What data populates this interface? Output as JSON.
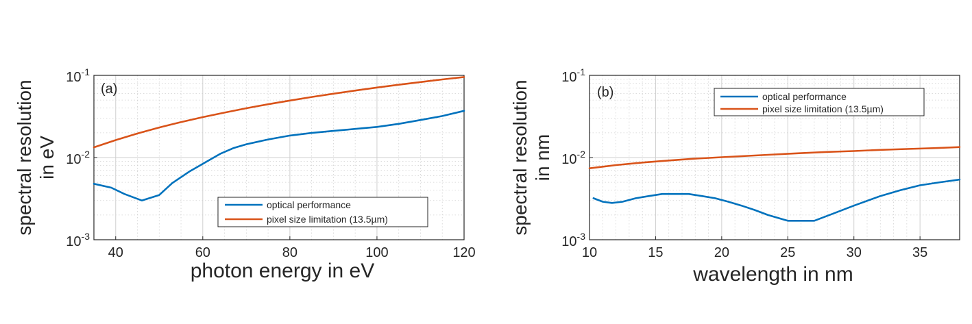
{
  "chart_data": [
    {
      "type": "line",
      "panel_label": "(a)",
      "xlabel": "photon energy in eV",
      "ylabel_lines": [
        "spectral resolution",
        "in eV"
      ],
      "xlim": [
        35,
        120
      ],
      "ylim": [
        0.001,
        0.1
      ],
      "yscale": "log",
      "grid": true,
      "xticks": [
        40,
        60,
        80,
        100,
        120
      ],
      "yticks": [
        {
          "value": 0.001,
          "base": "10",
          "exp": "-3"
        },
        {
          "value": 0.01,
          "base": "10",
          "exp": "-2"
        },
        {
          "value": 0.1,
          "base": "10",
          "exp": "-1"
        }
      ],
      "legend_position": "lower-right",
      "series": [
        {
          "name": "optical performance",
          "color": "#0072BD",
          "x": [
            35,
            39,
            42,
            46,
            50,
            53,
            57,
            61,
            64,
            67,
            70,
            75,
            80,
            85,
            90,
            95,
            100,
            105,
            110,
            115,
            120
          ],
          "y": [
            0.0048,
            0.0043,
            0.0036,
            0.003,
            0.0035,
            0.0049,
            0.0068,
            0.009,
            0.0111,
            0.013,
            0.0145,
            0.0166,
            0.0185,
            0.0199,
            0.0211,
            0.0223,
            0.0236,
            0.0257,
            0.0286,
            0.032,
            0.037
          ]
        },
        {
          "name": "pixel size limitation (13.5µm)",
          "color": "#D95319",
          "x": [
            35,
            40,
            45,
            50,
            55,
            60,
            65,
            70,
            75,
            80,
            85,
            90,
            95,
            100,
            105,
            110,
            115,
            120
          ],
          "y": [
            0.0133,
            0.0163,
            0.0196,
            0.0232,
            0.027,
            0.031,
            0.0352,
            0.0398,
            0.0445,
            0.0494,
            0.0545,
            0.0598,
            0.0653,
            0.071,
            0.0769,
            0.0829,
            0.0891,
            0.0955
          ]
        }
      ]
    },
    {
      "type": "line",
      "panel_label": "(b)",
      "xlabel": "wavelength in nm",
      "ylabel_lines": [
        "spectral resolution",
        "in nm"
      ],
      "xlim": [
        10,
        38
      ],
      "ylim": [
        0.001,
        0.1
      ],
      "yscale": "log",
      "grid": true,
      "xticks": [
        10,
        15,
        20,
        25,
        30,
        35
      ],
      "yticks": [
        {
          "value": 0.001,
          "base": "10",
          "exp": "-3"
        },
        {
          "value": 0.01,
          "base": "10",
          "exp": "-2"
        },
        {
          "value": 0.1,
          "base": "10",
          "exp": "-1"
        }
      ],
      "legend_position": "top-right",
      "series": [
        {
          "name": "optical performance",
          "color": "#0072BD",
          "x": [
            10.3,
            11,
            11.7,
            12.5,
            13.5,
            14.5,
            15.5,
            16.5,
            17.5,
            18.5,
            19.5,
            20.5,
            21.5,
            22.5,
            23.5,
            25,
            27,
            28.5,
            30,
            32,
            33.5,
            35,
            36.5,
            38
          ],
          "y": [
            0.0032,
            0.0029,
            0.0028,
            0.0029,
            0.0032,
            0.0034,
            0.0036,
            0.0036,
            0.0036,
            0.0034,
            0.0032,
            0.0029,
            0.0026,
            0.0023,
            0.002,
            0.0017,
            0.0017,
            0.0021,
            0.0026,
            0.0034,
            0.004,
            0.0046,
            0.005,
            0.0054
          ]
        },
        {
          "name": "pixel size limitation (13.5µm)",
          "color": "#D95319",
          "x": [
            10,
            12,
            14,
            16,
            18,
            20,
            22,
            24,
            26,
            28,
            30,
            32,
            34,
            36,
            38
          ],
          "y": [
            0.0074,
            0.0081,
            0.0087,
            0.0092,
            0.0097,
            0.0101,
            0.0105,
            0.0109,
            0.0113,
            0.0117,
            0.012,
            0.0124,
            0.0127,
            0.013,
            0.0134
          ]
        }
      ]
    }
  ]
}
